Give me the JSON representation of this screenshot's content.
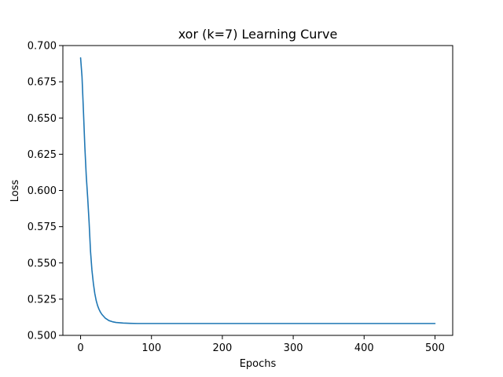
{
  "chart_data": {
    "type": "line",
    "title": "xor (k=7) Learning Curve",
    "xlabel": "Epochs",
    "ylabel": "Loss",
    "xlim": [
      -25,
      525
    ],
    "ylim": [
      0.5,
      0.7
    ],
    "xticks": [
      0,
      100,
      200,
      300,
      400,
      500
    ],
    "xtick_labels": [
      "0",
      "100",
      "200",
      "300",
      "400",
      "500"
    ],
    "yticks": [
      0.5,
      0.525,
      0.55,
      0.575,
      0.6,
      0.625,
      0.65,
      0.675,
      0.7
    ],
    "ytick_labels": [
      "0.500",
      "0.525",
      "0.550",
      "0.575",
      "0.600",
      "0.625",
      "0.650",
      "0.675",
      "0.700"
    ],
    "grid": false,
    "series": [
      {
        "color": "#1f77b4",
        "x": [
          0,
          2,
          4,
          6,
          8,
          10,
          12,
          14,
          16,
          18,
          20,
          22,
          24,
          26,
          28,
          30,
          35,
          40,
          45,
          50,
          60,
          70,
          80,
          100,
          150,
          200,
          300,
          400,
          500
        ],
        "y": [
          0.6915,
          0.6785,
          0.655,
          0.63,
          0.61,
          0.595,
          0.578,
          0.558,
          0.545,
          0.536,
          0.529,
          0.524,
          0.5205,
          0.518,
          0.516,
          0.5145,
          0.5118,
          0.5102,
          0.5094,
          0.5089,
          0.5085,
          0.5083,
          0.5082,
          0.5082,
          0.5082,
          0.5082,
          0.5082,
          0.5082,
          0.5082
        ]
      }
    ]
  },
  "colors": {
    "series": "#1f77b4",
    "frame": "#000000"
  }
}
